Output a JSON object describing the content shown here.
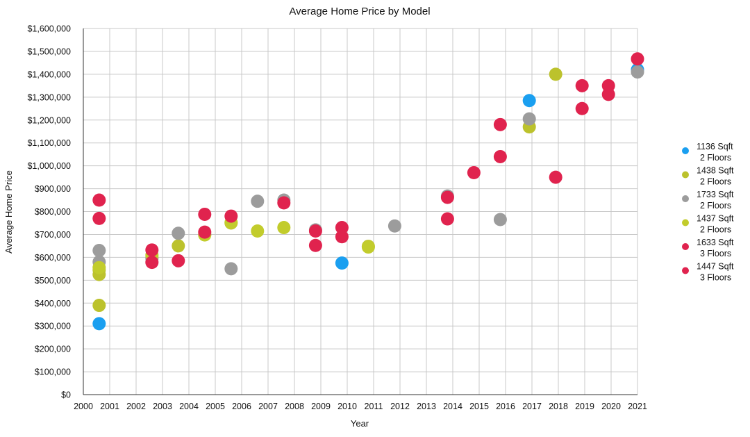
{
  "chart_data": {
    "type": "scatter",
    "title": "Average Home Price by Model",
    "xlabel": "Year",
    "ylabel": "Average Home Price",
    "xlim": [
      2000,
      2021
    ],
    "ylim": [
      0,
      1600000
    ],
    "x_categories": [
      "2000",
      "2001",
      "2002",
      "2003",
      "2004",
      "2005",
      "2006",
      "2007",
      "2008",
      "2009",
      "2010",
      "2011",
      "2012",
      "2013",
      "2014",
      "2015",
      "2016",
      "2017",
      "2018",
      "2019",
      "2020",
      "2021"
    ],
    "y_tick_labels": [
      "$0",
      "$100,000",
      "$200,000",
      "$300,000",
      "$400,000",
      "$500,000",
      "$600,000",
      "$700,000",
      "$800,000",
      "$900,000",
      "$1,000,000",
      "$1,100,000",
      "$1,200,000",
      "$1,300,000",
      "$1,400,000",
      "$1,500,000",
      "$1,600,000"
    ],
    "grid": true,
    "legend_position": "right",
    "series": [
      {
        "name": "1136 Sqft\n2 Floors",
        "color": "#1a9ff0",
        "points": [
          [
            2000.6,
            310000
          ],
          [
            2009.8,
            575000
          ],
          [
            2016.9,
            1285000
          ],
          [
            2021.0,
            1420000
          ]
        ]
      },
      {
        "name": "1438 Sqft\n2 Floors",
        "color": "#bcc22c",
        "points": [
          [
            2000.6,
            390000
          ],
          [
            2000.6,
            525000
          ],
          [
            2000.6,
            545000
          ],
          [
            2002.6,
            600000
          ],
          [
            2003.6,
            650000
          ],
          [
            2005.6,
            750000
          ],
          [
            2010.8,
            648000
          ],
          [
            2016.9,
            1170000
          ],
          [
            2017.9,
            1400000
          ]
        ]
      },
      {
        "name": "1733 Sqft\n2 Floors",
        "color": "#9c9c9c",
        "points": [
          [
            2000.6,
            630000
          ],
          [
            2000.6,
            580000
          ],
          [
            2002.6,
            595000
          ],
          [
            2003.6,
            705000
          ],
          [
            2004.6,
            700000
          ],
          [
            2005.6,
            550000
          ],
          [
            2006.6,
            845000
          ],
          [
            2007.6,
            850000
          ],
          [
            2008.8,
            720000
          ],
          [
            2011.8,
            737000
          ],
          [
            2013.8,
            868000
          ],
          [
            2015.8,
            765000
          ],
          [
            2016.9,
            1205000
          ],
          [
            2021.0,
            1410000
          ]
        ]
      },
      {
        "name": "1437 Sqft\n2 Floors",
        "color": "#c2cc2c",
        "points": [
          [
            2000.6,
            555000
          ],
          [
            2002.6,
            610000
          ],
          [
            2004.6,
            698000
          ],
          [
            2005.6,
            752000
          ],
          [
            2006.6,
            715000
          ],
          [
            2007.6,
            730000
          ],
          [
            2010.8,
            645000
          ]
        ]
      },
      {
        "name": "1633 Sqft\n3 Floors",
        "color": "#e0234e",
        "points": [
          [
            2000.6,
            850000
          ],
          [
            2000.6,
            770000
          ],
          [
            2002.6,
            632000
          ],
          [
            2002.6,
            578000
          ],
          [
            2003.6,
            585000
          ],
          [
            2004.6,
            788000
          ],
          [
            2004.6,
            710000
          ],
          [
            2005.6,
            780000
          ],
          [
            2007.6,
            838000
          ],
          [
            2008.8,
            715000
          ],
          [
            2008.8,
            652000
          ],
          [
            2009.8,
            730000
          ],
          [
            2009.8,
            690000
          ],
          [
            2013.8,
            768000
          ],
          [
            2013.8,
            862000
          ],
          [
            2014.8,
            970000
          ],
          [
            2015.8,
            1040000
          ],
          [
            2015.8,
            1180000
          ],
          [
            2017.9,
            950000
          ],
          [
            2018.9,
            1350000
          ],
          [
            2018.9,
            1250000
          ],
          [
            2019.9,
            1350000
          ],
          [
            2019.9,
            1312000
          ],
          [
            2021.0,
            1467000
          ]
        ]
      },
      {
        "name": "1447 Sqft\n3 Floors",
        "color": "#e0234e",
        "points": []
      }
    ]
  }
}
